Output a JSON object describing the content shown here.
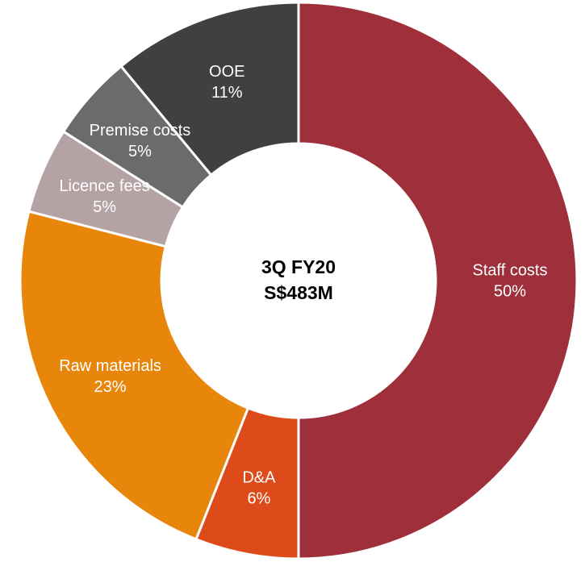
{
  "chart_data": {
    "type": "donut",
    "center_label": [
      "3Q FY20",
      "S$483M"
    ],
    "categories": [
      "Staff costs",
      "D&A",
      "Raw materials",
      "Licence fees",
      "Premise costs",
      "OOE"
    ],
    "values": [
      50,
      6,
      23,
      5,
      5,
      11
    ],
    "value_labels": [
      "50%",
      "6%",
      "23%",
      "5%",
      "5%",
      "11%"
    ],
    "colors": [
      "#9e2f3b",
      "#dd4b1a",
      "#e8860b",
      "#b4a2a5",
      "#6b6b6b",
      "#404040"
    ]
  }
}
